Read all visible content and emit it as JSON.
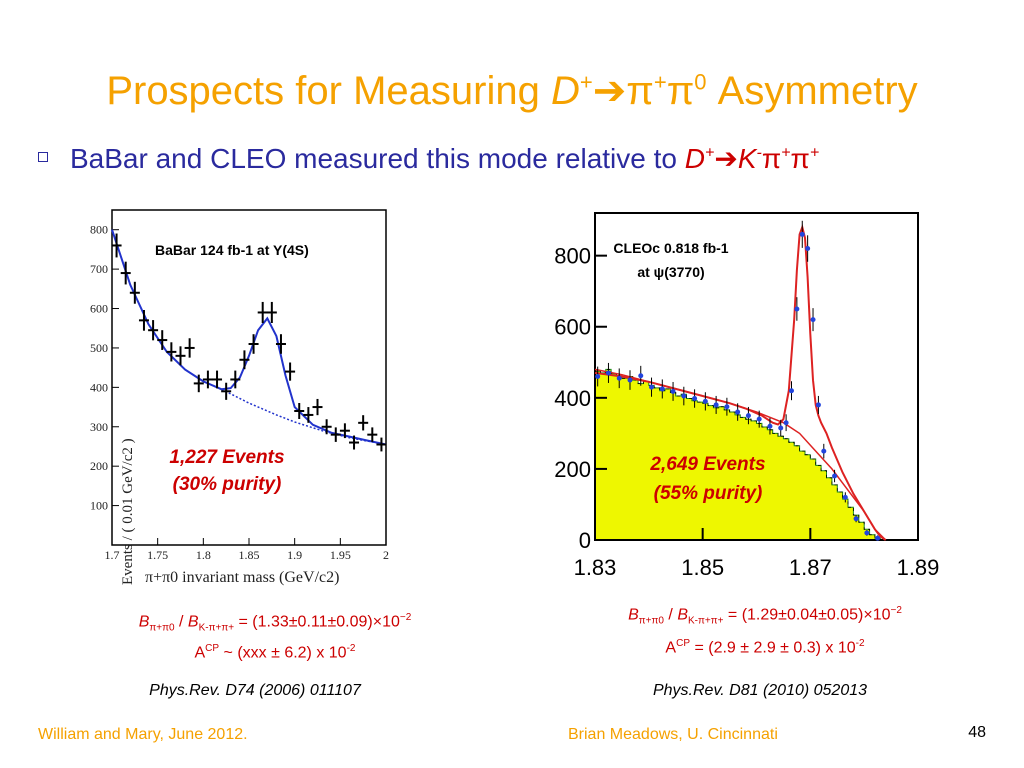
{
  "slide": {
    "title_prefix": "Prospects for Measuring",
    "title_D": "D",
    "title_D_sup": "+",
    "title_arrow": "➔",
    "title_decay": "π",
    "title_decay_sup1": "+",
    "title_decay2": "π",
    "title_decay_sup2": "0",
    "title_suffix": "Asymmetry",
    "bullet_text": "BaBar and CLEO measured this mode relative to",
    "bullet_D": "D",
    "bullet_D_sup": "+",
    "bullet_arrow": "➔",
    "bullet_K": "K",
    "bullet_K_sup": "-",
    "bullet_pi": "π",
    "bullet_pi_sup": "+",
    "bullet_pi2": "π",
    "bullet_pi2_sup": "+",
    "footer_left": "William and Mary, June 2012.",
    "footer_center": "Brian Meadows, U. Cincinnati",
    "page_number": "48",
    "colors": {
      "title": "#f5a100",
      "bullet": "#2a2a9e",
      "annotation": "#cc0000"
    }
  },
  "left": {
    "formula_B1": "B",
    "formula_sub1": "π+π0",
    "formula_sep": " / ",
    "formula_B2": "B",
    "formula_sub2": "K-π+π+",
    "formula_value": " = (1.33±0.11±0.09)×10",
    "formula_exp": "−2",
    "acp_A": "A",
    "acp_sup": "CP",
    "acp_value": " ~ (xxx ± 6.2) x 10",
    "acp_exp": "-2",
    "reference": "Phys.Rev. D74 (2006) 011107"
  },
  "right": {
    "formula_B1": "B",
    "formula_sub1": "π+π0",
    "formula_sep": " / ",
    "formula_B2": "B",
    "formula_sub2": "K-π+π+",
    "formula_value": " = (1.29±0.04±0.05)×10",
    "formula_exp": "−2",
    "acp_A": "A",
    "acp_sup": "CP",
    "acp_value": " = (2.9 ± 2.9 ± 0.3) x 10",
    "acp_exp": "-2",
    "reference": "Phys.Rev. D81 (2010) 052013"
  },
  "chart_data": [
    {
      "type": "scatter",
      "title": "BaBar 124 fb-1 at Y(4S)",
      "xlabel": "π+π0 invariant mass (GeV/c2)",
      "ylabel": "Events / ( 0.01 GeV/c2 )",
      "xlim": [
        1.7,
        2.0
      ],
      "ylim": [
        0,
        850
      ],
      "xticks": [
        "1.7",
        "1.75",
        "1.8",
        "1.85",
        "1.9",
        "1.95",
        "2"
      ],
      "yticks": [
        "100",
        "200",
        "300",
        "400",
        "500",
        "600",
        "700",
        "800"
      ],
      "annotation_line1": "1,227 Events",
      "annotation_line2": "(30% purity)",
      "series": [
        {
          "x": [
            1.705,
            1.715,
            1.725,
            1.735,
            1.745,
            1.755,
            1.765,
            1.775,
            1.785,
            1.795,
            1.805,
            1.815,
            1.825,
            1.835,
            1.845,
            1.855,
            1.865,
            1.875,
            1.885,
            1.895,
            1.905,
            1.915,
            1.925,
            1.935,
            1.945,
            1.955,
            1.965,
            1.975,
            1.985,
            1.995
          ],
          "y": [
            760,
            690,
            640,
            570,
            545,
            520,
            490,
            480,
            500,
            410,
            420,
            420,
            390,
            420,
            470,
            510,
            590,
            590,
            510,
            440,
            340,
            330,
            350,
            300,
            280,
            290,
            260,
            310,
            280,
            255
          ]
        }
      ],
      "fit_total": {
        "x": [
          1.7,
          1.72,
          1.74,
          1.76,
          1.78,
          1.8,
          1.82,
          1.83,
          1.84,
          1.85,
          1.86,
          1.87,
          1.88,
          1.89,
          1.9,
          1.92,
          1.94,
          1.96,
          1.98,
          2.0
        ],
        "y": [
          800,
          660,
          560,
          490,
          445,
          415,
          395,
          398,
          425,
          480,
          545,
          575,
          530,
          430,
          350,
          305,
          285,
          275,
          265,
          255
        ]
      },
      "fit_background": {
        "x": [
          1.82,
          1.85,
          1.88,
          1.9,
          1.93,
          1.96,
          2.0
        ],
        "y": [
          395,
          360,
          330,
          312,
          290,
          272,
          255
        ]
      }
    },
    {
      "type": "bar",
      "title": "CLEOc 0.818 fb-1 at ψ(3770)",
      "xlim": [
        1.83,
        1.89
      ],
      "ylim": [
        0,
        920
      ],
      "xticks": [
        "1.83",
        "1.85",
        "1.87",
        "1.89"
      ],
      "yticks": [
        "0",
        "200",
        "400",
        "600",
        "800"
      ],
      "annotation_line1": "2,649 Events",
      "annotation_line2": "(55% purity)",
      "background_hist": {
        "x": [
          1.8305,
          1.8315,
          1.8325,
          1.8335,
          1.8345,
          1.8355,
          1.8365,
          1.8375,
          1.8385,
          1.8395,
          1.8405,
          1.8415,
          1.8425,
          1.8435,
          1.8445,
          1.8455,
          1.8465,
          1.8475,
          1.8485,
          1.8495,
          1.8505,
          1.8515,
          1.8525,
          1.8535,
          1.8545,
          1.8555,
          1.8565,
          1.8575,
          1.8585,
          1.8595,
          1.8605,
          1.8615,
          1.8625,
          1.8635,
          1.8645,
          1.8655,
          1.8665,
          1.8675,
          1.8685,
          1.8695,
          1.8705,
          1.8715,
          1.8725,
          1.8735,
          1.8745,
          1.8755,
          1.8765,
          1.8775,
          1.8785,
          1.8795,
          1.8805,
          1.8815,
          1.8825,
          1.8835,
          1.8845
        ],
        "y": [
          475,
          470,
          480,
          468,
          462,
          455,
          460,
          450,
          440,
          446,
          435,
          428,
          420,
          425,
          415,
          405,
          410,
          398,
          392,
          388,
          385,
          378,
          372,
          375,
          366,
          360,
          352,
          345,
          340,
          335,
          328,
          318,
          310,
          300,
          292,
          285,
          275,
          265,
          250,
          240,
          228,
          210,
          195,
          175,
          155,
          135,
          115,
          92,
          70,
          50,
          30,
          15,
          5,
          0,
          0
        ]
      },
      "series": [
        {
          "x": [
            1.8305,
            1.8325,
            1.8345,
            1.8365,
            1.8385,
            1.8405,
            1.8425,
            1.8445,
            1.8465,
            1.8485,
            1.8505,
            1.8525,
            1.8545,
            1.8565,
            1.8585,
            1.8605,
            1.8625,
            1.8645,
            1.8655,
            1.8665,
            1.8675,
            1.8685,
            1.8695,
            1.8705,
            1.8715,
            1.8725,
            1.8745,
            1.8765,
            1.8785,
            1.8805,
            1.8825
          ],
          "y": [
            460,
            470,
            455,
            450,
            462,
            430,
            425,
            418,
            405,
            398,
            390,
            380,
            375,
            360,
            350,
            340,
            320,
            315,
            330,
            420,
            650,
            860,
            820,
            620,
            380,
            250,
            180,
            120,
            60,
            20,
            5
          ]
        }
      ],
      "fit_total": {
        "x": [
          1.83,
          1.835,
          1.84,
          1.845,
          1.85,
          1.855,
          1.858,
          1.861,
          1.863,
          1.864,
          1.865,
          1.866,
          1.867,
          1.8675,
          1.868,
          1.8685,
          1.869,
          1.8695,
          1.87,
          1.8705,
          1.871,
          1.8715,
          1.872,
          1.873,
          1.874,
          1.876,
          1.878,
          1.88,
          1.882,
          1.883,
          1.884
        ],
        "y": [
          470,
          460,
          445,
          425,
          405,
          385,
          370,
          350,
          330,
          325,
          340,
          420,
          620,
          760,
          860,
          880,
          850,
          740,
          580,
          450,
          380,
          350,
          330,
          300,
          260,
          190,
          130,
          80,
          30,
          10,
          0
        ]
      },
      "fit_background": {
        "x": [
          1.83,
          1.835,
          1.84,
          1.845,
          1.85,
          1.855,
          1.86,
          1.865,
          1.868,
          1.871,
          1.874,
          1.877,
          1.88,
          1.882,
          1.884
        ],
        "y": [
          480,
          465,
          445,
          425,
          405,
          385,
          360,
          330,
          300,
          250,
          200,
          140,
          80,
          30,
          0
        ]
      }
    }
  ]
}
